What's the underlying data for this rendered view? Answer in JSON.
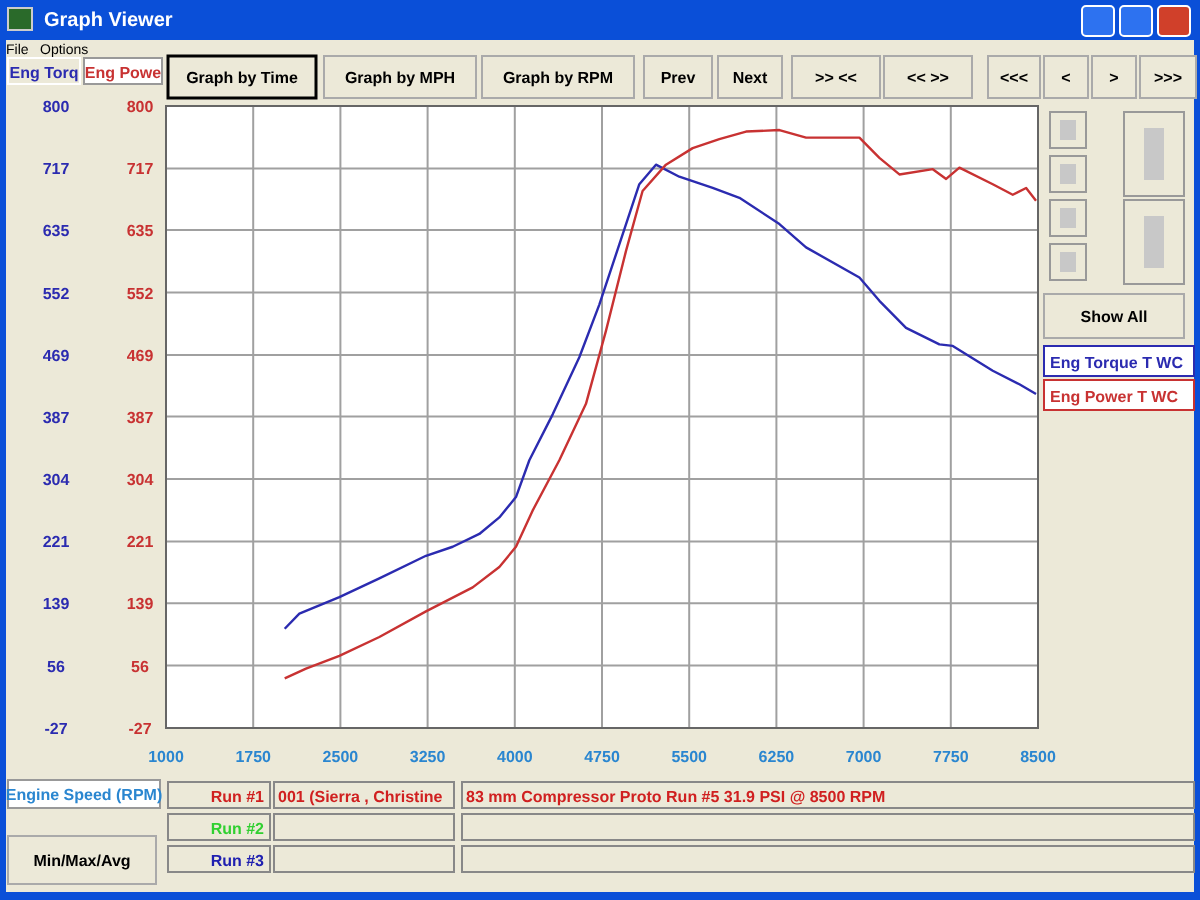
{
  "chart_data": {
    "type": "line",
    "xlabel": "Engine Speed (RPM)",
    "ylabel": "Eng Torq",
    "y2label": "Eng Powe",
    "xlim": [
      1000,
      8500
    ],
    "xticks": [
      1000,
      1750,
      2500,
      3250,
      4000,
      4750,
      5500,
      6250,
      7000,
      7750,
      8500
    ],
    "ylim": [
      -27,
      800
    ],
    "yticks": [
      -27,
      56,
      139,
      221,
      304,
      387,
      469,
      552,
      635,
      717,
      800
    ],
    "y2lim": [
      -27,
      800
    ],
    "y2ticks": [
      -27,
      56,
      139,
      221,
      304,
      387,
      469,
      552,
      635,
      717,
      800
    ],
    "grid": true,
    "legend": "right",
    "line_style": "solid",
    "marker": "none",
    "series": [
      {
        "name": "Eng Torque T WC",
        "color": "#2b2bb0",
        "x": [
          2021,
          2147,
          2491,
          2835,
          3236,
          3466,
          3695,
          3867,
          4010,
          4125,
          4326,
          4555,
          4727,
          4899,
          5071,
          5214,
          5415,
          5702,
          5932,
          6276,
          6505,
          6964,
          7136,
          7365,
          7652,
          7767,
          8111,
          8340,
          8483
        ],
        "values": [
          105,
          125,
          147,
          172,
          202,
          214,
          231,
          253,
          280,
          329,
          390,
          466,
          536,
          616,
          696,
          722,
          706,
          691,
          678,
          643,
          612,
          572,
          541,
          505,
          483,
          481,
          448,
          430,
          417
        ]
      },
      {
        "name": "Eng Power T WC",
        "color": "#c83232",
        "axis": "y2",
        "x": [
          2021,
          2204,
          2491,
          2835,
          3236,
          3638,
          3867,
          4010,
          4153,
          4383,
          4612,
          4784,
          4956,
          5099,
          5300,
          5530,
          5759,
          5989,
          6276,
          6505,
          6964,
          7136,
          7308,
          7595,
          7710,
          7824,
          8111,
          8283,
          8398,
          8483
        ],
        "values": [
          39,
          52,
          69,
          94,
          128,
          160,
          187,
          214,
          262,
          329,
          404,
          501,
          607,
          687,
          722,
          744,
          756,
          766,
          768,
          758,
          758,
          731,
          709,
          716,
          703,
          718,
          696,
          682,
          691,
          674
        ]
      }
    ],
    "annotations": [
      "Graph Viewer",
      "File",
      "Options",
      "Graph by Time",
      "Graph by MPH",
      "Graph by RPM",
      "Prev",
      "Next",
      ">> <<",
      "<< >>",
      "<<<",
      "<",
      ">",
      ">>>",
      "Show All",
      "Min/Max/Avg",
      "Run #1",
      "Run #2",
      "Run #3",
      "001 (Sierra , Christine",
      "83 mm Compressor Proto Run #5 31.9 PSI @ 8500 RPM"
    ]
  }
}
